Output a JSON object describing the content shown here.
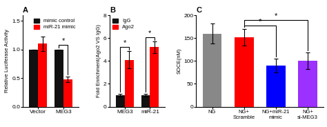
{
  "chart_data": [
    {
      "type": "grouped_bar",
      "title": "A",
      "categories": [
        "Vector",
        "MEG3"
      ],
      "series": [
        {
          "name": "mimic control",
          "color": "#111111",
          "values": [
            1.0,
            1.0
          ],
          "errors": [
            0.0,
            0.0
          ]
        },
        {
          "name": "miR-21 mimic",
          "color": "#ff0000",
          "values": [
            1.1,
            0.48
          ],
          "errors": [
            0.13,
            0.05
          ]
        }
      ],
      "ylabel": "Relative Luciferase Activity",
      "ylim": [
        0,
        1.6
      ],
      "yticks": [
        0.0,
        0.5,
        1.0,
        1.5
      ],
      "legend": "upper right",
      "annotations": [
        {
          "text": "*",
          "category": "MEG3"
        }
      ]
    },
    {
      "type": "grouped_bar",
      "title": "B",
      "categories": [
        "MEG3",
        "miR-21"
      ],
      "series": [
        {
          "name": "IgG",
          "color": "#111111",
          "values": [
            1.0,
            1.0
          ],
          "errors": [
            0.12,
            0.12
          ]
        },
        {
          "name": "Ago2",
          "color": "#ff0000",
          "values": [
            4.1,
            5.2
          ],
          "errors": [
            0.75,
            0.5
          ]
        }
      ],
      "ylabel": "Fold Enrichment(Ago2 VS IgG)",
      "ylim": [
        0,
        8
      ],
      "yticks": [
        0,
        2,
        4,
        6,
        8
      ],
      "legend": "upper left",
      "annotations": [
        {
          "text": "*",
          "category": "MEG3"
        },
        {
          "text": "*",
          "category": "miR-21"
        }
      ]
    },
    {
      "type": "bar",
      "title": "C",
      "categories": [
        "NG",
        "NG+\nScramble",
        "NG+miR-21\nmimic",
        "NG+\nsi-MEG3"
      ],
      "values": [
        160,
        152,
        90,
        101
      ],
      "errors": [
        22,
        18,
        15,
        18
      ],
      "colors": [
        "#888888",
        "#ff0000",
        "#0000ff",
        "#9b30ff"
      ],
      "ylabel": "SOCE(nM)",
      "ylim": [
        0,
        200
      ],
      "yticks": [
        0,
        50,
        100,
        150,
        200
      ],
      "annotations": [
        {
          "text": "*",
          "between": [
            "NG+\nScramble",
            "NG+miR-21\nmimic"
          ]
        },
        {
          "text": "*",
          "between": [
            "NG+\nScramble",
            "NG+\nsi-MEG3"
          ]
        }
      ]
    }
  ]
}
